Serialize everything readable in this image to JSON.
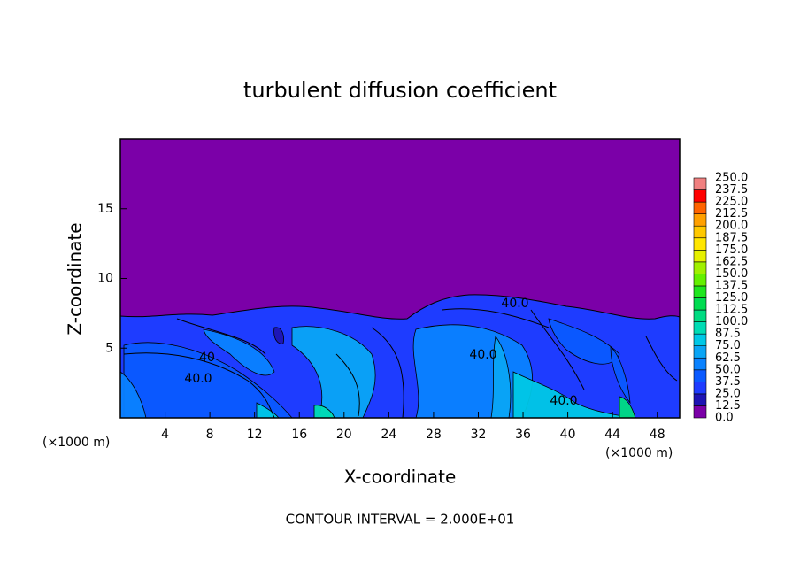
{
  "chart_data": {
    "type": "contour",
    "title": "turbulent diffusion coefficient",
    "x_label": "X-coordinate",
    "y_label": "Z-coordinate",
    "x_unit_left": "(×1000 m)",
    "x_unit_right": "(×1000 m)",
    "footer": "CONTOUR INTERVAL = 2.000E+01",
    "xlim": [
      0,
      50
    ],
    "ylim": [
      0,
      20
    ],
    "xticks": [
      4,
      8,
      12,
      16,
      20,
      24,
      28,
      32,
      36,
      40,
      44,
      48
    ],
    "yticks": [
      5,
      10,
      15
    ],
    "colorbar": {
      "levels": [
        {
          "value": 0,
          "label": "0.0"
        },
        12.5,
        {
          "value": 25,
          "label": "25.0"
        },
        37.5,
        {
          "value": 50,
          "label": "50.0"
        },
        62.5,
        {
          "value": 75,
          "label": "75.0"
        },
        87.5,
        {
          "value": 100,
          "label": "100.0"
        },
        112.5,
        {
          "value": 125,
          "label": "125.0"
        },
        137.5,
        {
          "value": 150,
          "label": "150.0"
        },
        162.5,
        {
          "value": 175,
          "label": "175.0"
        },
        187.5,
        {
          "value": 200,
          "label": "200.0"
        },
        212.5,
        {
          "value": 225,
          "label": "225.0"
        },
        237.5,
        {
          "value": 250,
          "label": "250.0"
        }
      ],
      "colors": [
        "#7b00a8",
        "#1e14b4",
        "#1e3cff",
        "#0a5aff",
        "#0a82ff",
        "#0aa5f5",
        "#00c8e6",
        "#00dcb4",
        "#00dc82",
        "#00dc50",
        "#1ee61e",
        "#64f000",
        "#a0f000",
        "#e6f000",
        "#ffe600",
        "#ffc800",
        "#ffa000",
        "#ff6400",
        "#ff0000",
        "#f08080"
      ]
    },
    "contour_labels": [
      "40.0",
      "40",
      "40.0",
      "40.0",
      "40.0"
    ]
  }
}
